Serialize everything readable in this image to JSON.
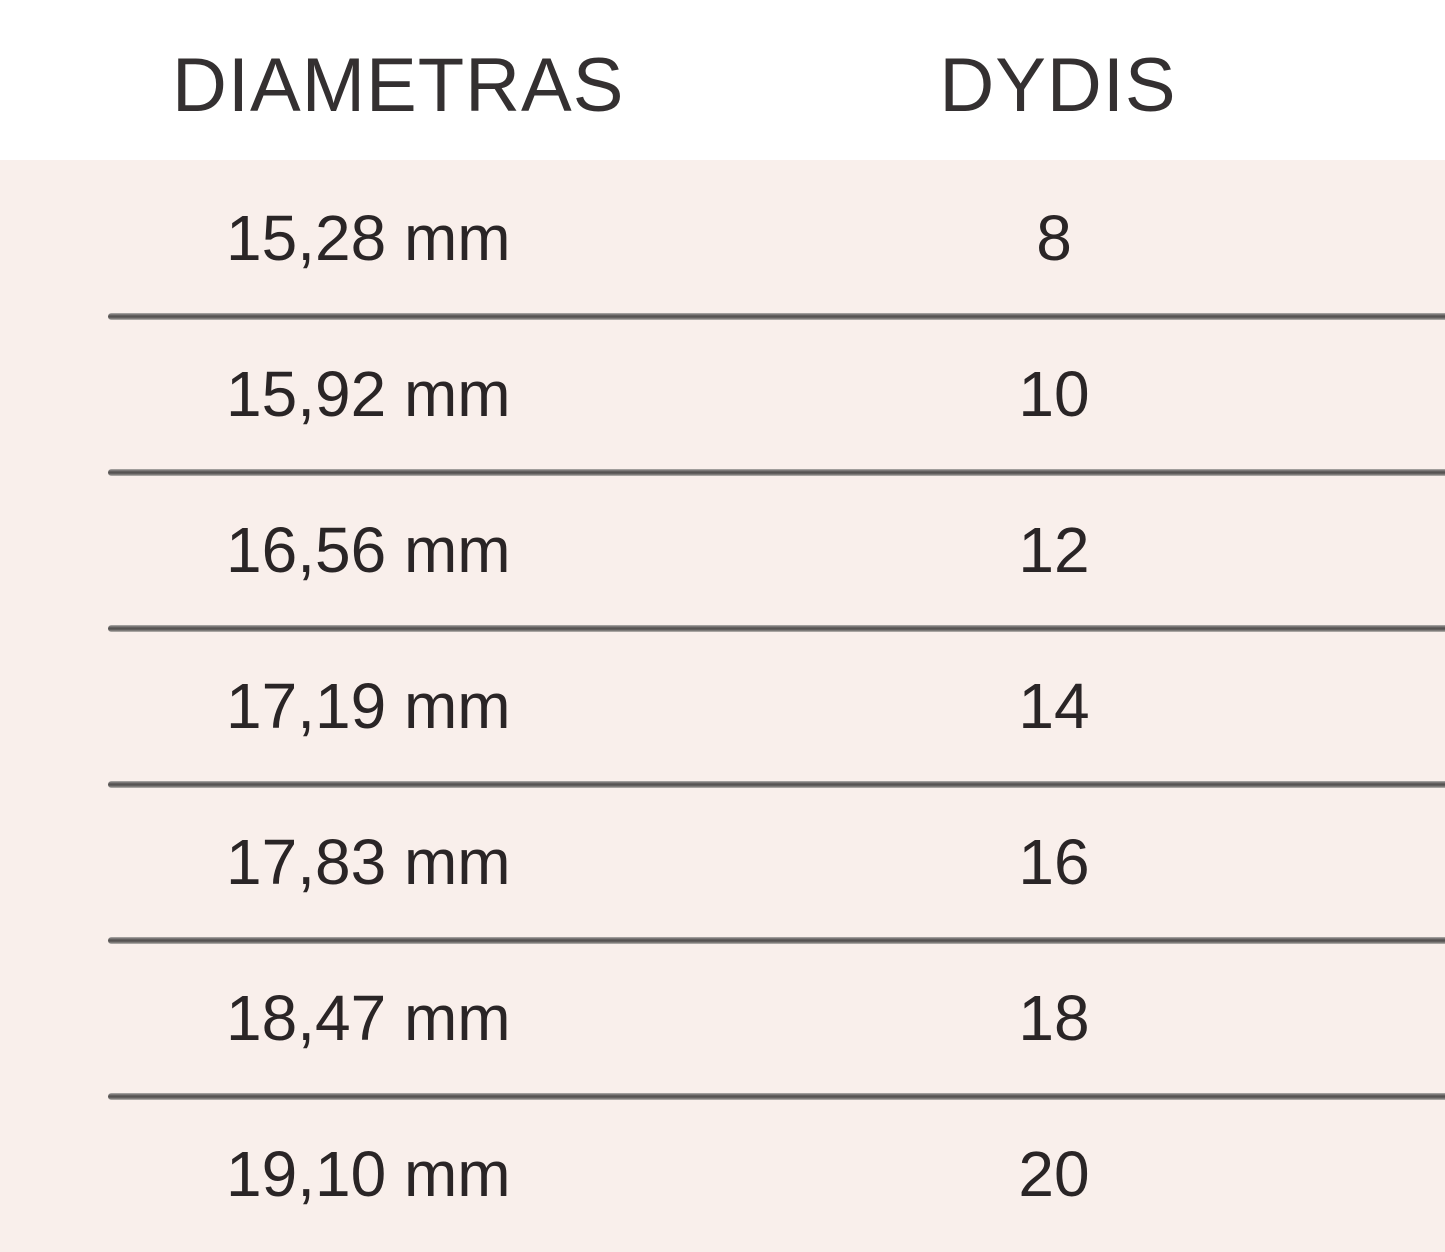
{
  "header": {
    "diameter_label": "DIAMETRAS",
    "size_label": "DYDIS"
  },
  "rows": [
    {
      "diameter": "15,28 mm",
      "size": "8"
    },
    {
      "diameter": "15,92 mm",
      "size": "10"
    },
    {
      "diameter": "16,56 mm",
      "size": "12"
    },
    {
      "diameter": "17,19 mm",
      "size": "14"
    },
    {
      "diameter": "17,83 mm",
      "size": "16"
    },
    {
      "diameter": "18,47 mm",
      "size": "18"
    },
    {
      "diameter": "19,10 mm",
      "size": "20"
    }
  ],
  "chart_data": {
    "type": "table",
    "title": "",
    "columns": [
      "DIAMETRAS",
      "DYDIS"
    ],
    "rows": [
      [
        "15,28 mm",
        "8"
      ],
      [
        "15,92 mm",
        "10"
      ],
      [
        "16,56 mm",
        "12"
      ],
      [
        "17,19 mm",
        "14"
      ],
      [
        "17,83 mm",
        "16"
      ],
      [
        "18,47 mm",
        "18"
      ],
      [
        "19,10 mm",
        "20"
      ]
    ]
  },
  "colors": {
    "header_bg": "#ffffff",
    "body_bg": "#f9efeb",
    "divider": "#524f4e",
    "text": "#2a2526",
    "header_text": "#343031"
  }
}
